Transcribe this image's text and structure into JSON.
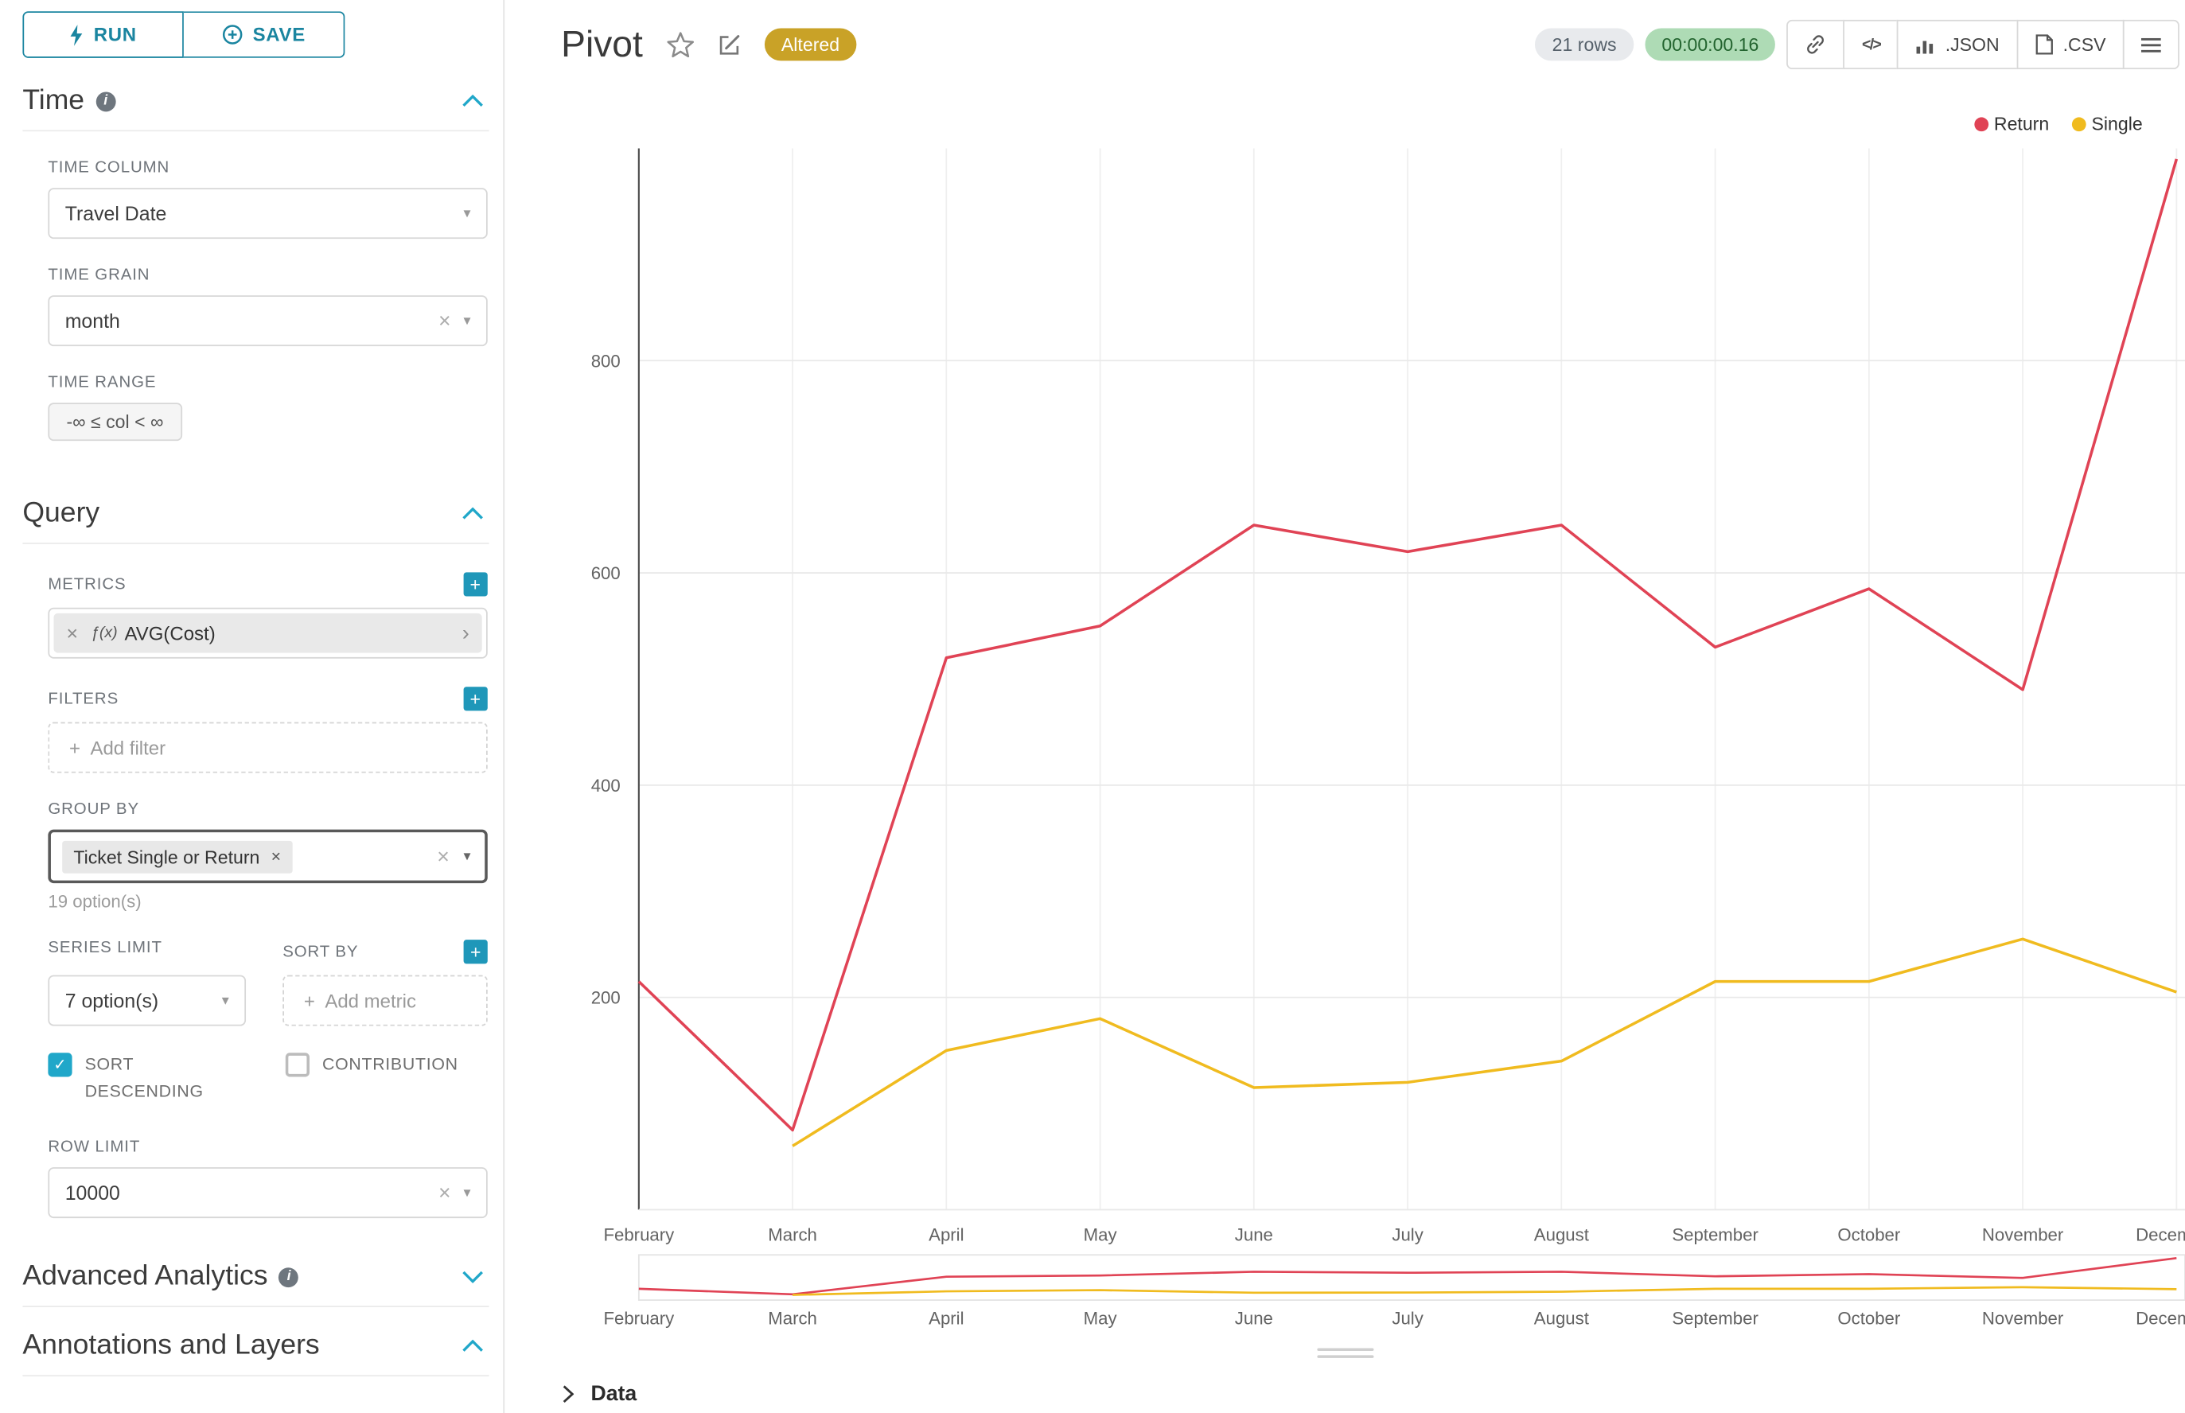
{
  "colors": {
    "accent": "#20a7c9",
    "accent_dark": "#1a85a0",
    "altered_badge_bg": "#c9a227",
    "rows_badge_bg": "#e8eaed",
    "timer_badge_bg": "#aedbb5",
    "timer_badge_text": "#23642f",
    "series_return": "#e04355",
    "series_single": "#f0bb1f"
  },
  "icons": {
    "info": "i",
    "caret": "▾",
    "clear": "×",
    "plus": "+",
    "check": "✓",
    "menu": "≡",
    "code": "</>",
    "fx": "ƒ(x)",
    "chevron_right": "›"
  },
  "sidebar": {
    "run_label": "RUN",
    "save_label": "SAVE",
    "time_section": {
      "title": "Time",
      "time_column_label": "TIME COLUMN",
      "time_column_value": "Travel Date",
      "time_grain_label": "TIME GRAIN",
      "time_grain_value": "month",
      "time_range_label": "TIME RANGE",
      "time_range_value": "-∞ ≤ col < ∞"
    },
    "query_section": {
      "title": "Query",
      "metrics_label": "METRICS",
      "metric_name": "AVG(Cost)",
      "filters_label": "FILTERS",
      "add_filter_placeholder": "Add filter",
      "group_by_label": "GROUP BY",
      "group_by_value": "Ticket Single or Return",
      "group_by_options_hint": "19 option(s)",
      "series_limit_label": "SERIES LIMIT",
      "series_limit_value": "7 option(s)",
      "sort_by_label": "SORT BY",
      "add_metric_placeholder": "Add metric",
      "sort_descending_label": "SORT DESCENDING",
      "sort_descending_checked": true,
      "contribution_label": "CONTRIBUTION",
      "contribution_checked": false,
      "row_limit_label": "ROW LIMIT",
      "row_limit_value": "10000"
    },
    "advanced_section_title": "Advanced Analytics",
    "annotations_section_title": "Annotations and Layers"
  },
  "header": {
    "title": "Pivot",
    "altered_badge": "Altered",
    "rows_badge": "21 rows",
    "timer_badge": "00:00:00.16",
    "json_label": ".JSON",
    "csv_label": ".CSV"
  },
  "data_panel": {
    "title": "Data"
  },
  "chart_data": {
    "type": "line",
    "x": [
      "February",
      "March",
      "April",
      "May",
      "June",
      "July",
      "August",
      "September",
      "October",
      "November",
      "December"
    ],
    "yticks": [
      200,
      400,
      600,
      800
    ],
    "ylim": [
      0,
      1000
    ],
    "grid": true,
    "legend_position": "top-right",
    "series": [
      {
        "name": "Return",
        "color": "#e04355",
        "values": [
          215,
          75,
          520,
          550,
          645,
          620,
          645,
          530,
          585,
          490,
          990
        ]
      },
      {
        "name": "Single",
        "color": "#f0bb1f",
        "values": [
          null,
          60,
          150,
          180,
          115,
          120,
          140,
          215,
          215,
          255,
          205
        ]
      }
    ]
  }
}
